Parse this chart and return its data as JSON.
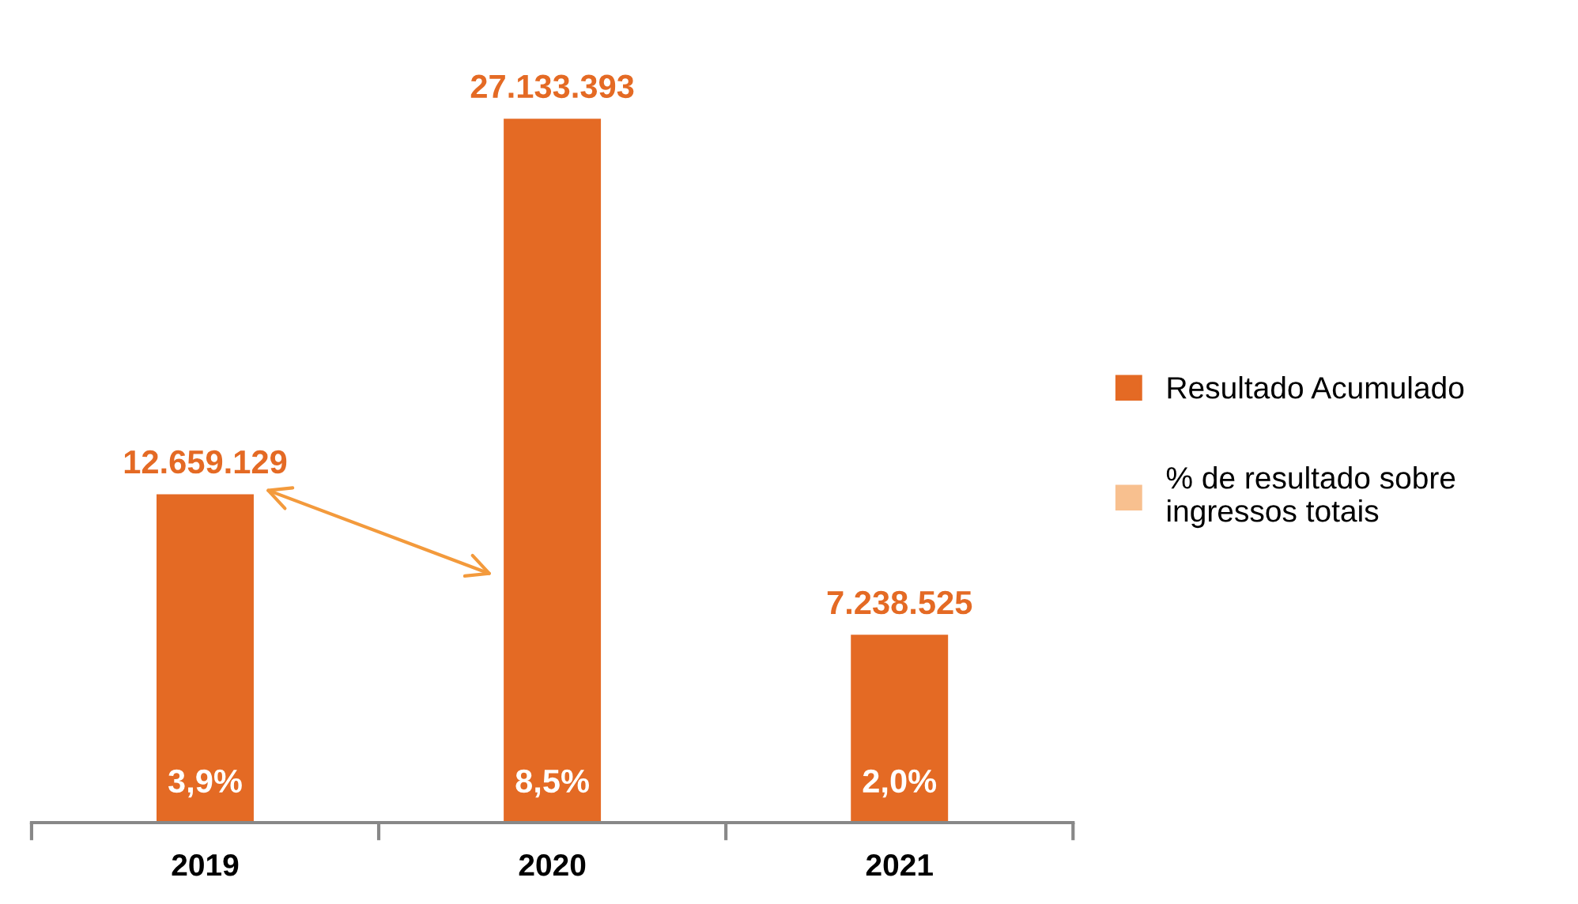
{
  "chart_data": {
    "type": "bar",
    "categories": [
      "2019",
      "2020",
      "2021"
    ],
    "series": [
      {
        "name": "Resultado Acumulado",
        "color": "#e46a24",
        "values": [
          12659129,
          27133393,
          7238525
        ],
        "value_labels": [
          "12.659.129",
          "27.133.393",
          "7.238.525"
        ]
      },
      {
        "name": "% de resultado sobre ingressos totais",
        "color": "#f8c08f",
        "values": [
          3.9,
          8.5,
          2.0
        ],
        "value_labels": [
          "3,9%",
          "8,5%",
          "2,0%"
        ]
      }
    ],
    "legend": "right",
    "grid": false
  }
}
